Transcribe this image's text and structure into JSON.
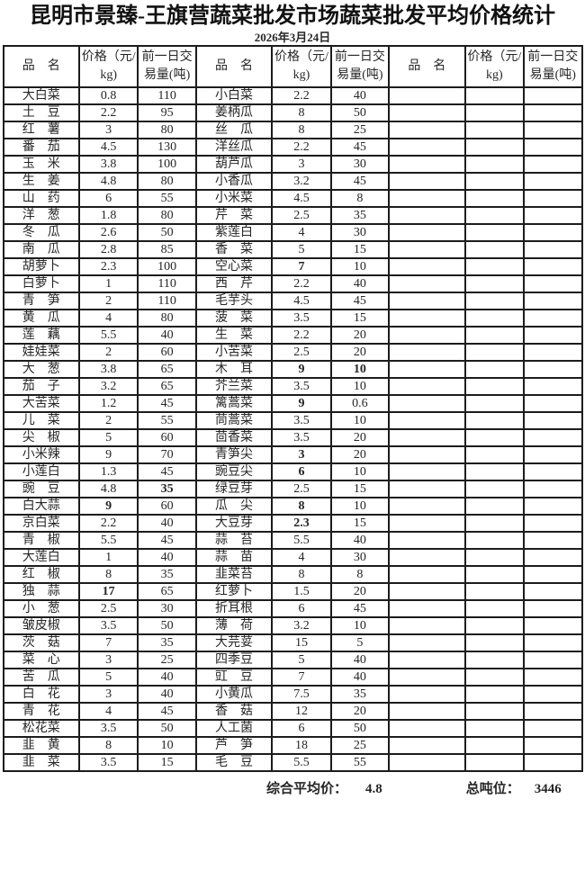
{
  "title": "昆明市景臻-王旗营蔬菜批发市场蔬菜批发平均价格统计",
  "date": "2026年3月24日",
  "columns": [
    "品　名",
    "价格（元/kg)",
    "前一日交易量(吨)"
  ],
  "groups": [
    {
      "rows": [
        {
          "n": "大白菜",
          "p": "0.8",
          "v": "110"
        },
        {
          "n": "土豆",
          "p": "2.2",
          "v": "95"
        },
        {
          "n": "红薯",
          "p": "3",
          "v": "80"
        },
        {
          "n": "番茄",
          "p": "4.5",
          "v": "130"
        },
        {
          "n": "玉米",
          "p": "3.8",
          "v": "100"
        },
        {
          "n": "生姜",
          "p": "4.8",
          "v": "80"
        },
        {
          "n": "山药",
          "p": "6",
          "v": "55"
        },
        {
          "n": "洋葱",
          "p": "1.8",
          "v": "80"
        },
        {
          "n": "冬瓜",
          "p": "2.6",
          "v": "50"
        },
        {
          "n": "南瓜",
          "p": "2.8",
          "v": "85"
        },
        {
          "n": "胡萝卜",
          "p": "2.3",
          "v": "100"
        },
        {
          "n": "白萝卜",
          "p": "1",
          "v": "110"
        },
        {
          "n": "青笋",
          "p": "2",
          "v": "110"
        },
        {
          "n": "黄瓜",
          "p": "4",
          "v": "80"
        },
        {
          "n": "莲藕",
          "p": "5.5",
          "v": "40"
        },
        {
          "n": "娃娃菜",
          "p": "2",
          "v": "60"
        },
        {
          "n": "大葱",
          "p": "3.8",
          "v": "65"
        },
        {
          "n": "茄子",
          "p": "3.2",
          "v": "65"
        },
        {
          "n": "大苦菜",
          "p": "1.2",
          "v": "45"
        },
        {
          "n": "儿菜",
          "p": "2",
          "v": "55"
        },
        {
          "n": "尖椒",
          "p": "5",
          "v": "60"
        },
        {
          "n": "小米辣",
          "p": "9",
          "v": "70"
        },
        {
          "n": "小莲白",
          "p": "1.3",
          "v": "45"
        },
        {
          "n": "豌豆",
          "p": "4.8",
          "v": "35",
          "b": [
            "v"
          ]
        },
        {
          "n": "白大蒜",
          "p": "9",
          "v": "60",
          "b": [
            "p"
          ]
        },
        {
          "n": "京白菜",
          "p": "2.2",
          "v": "40"
        },
        {
          "n": "青椒",
          "p": "5.5",
          "v": "45"
        },
        {
          "n": "大莲白",
          "p": "1",
          "v": "40"
        },
        {
          "n": "红椒",
          "p": "8",
          "v": "35"
        },
        {
          "n": "独蒜",
          "p": "17",
          "v": "65",
          "b": [
            "p"
          ]
        },
        {
          "n": "小葱",
          "p": "2.5",
          "v": "30"
        },
        {
          "n": "皱皮椒",
          "p": "3.5",
          "v": "50"
        },
        {
          "n": "茨菇",
          "p": "7",
          "v": "35"
        },
        {
          "n": "菜心",
          "p": "3",
          "v": "25"
        },
        {
          "n": "苦瓜",
          "p": "5",
          "v": "40"
        },
        {
          "n": "白花",
          "p": "3",
          "v": "40"
        },
        {
          "n": "青花",
          "p": "4",
          "v": "45"
        },
        {
          "n": "松花菜",
          "p": "3.5",
          "v": "50"
        },
        {
          "n": "韭黄",
          "p": "8",
          "v": "10"
        },
        {
          "n": "韭菜",
          "p": "3.5",
          "v": "15"
        }
      ]
    },
    {
      "rows": [
        {
          "n": "小白菜",
          "p": "2.2",
          "v": "40"
        },
        {
          "n": "姜柄瓜",
          "p": "8",
          "v": "50"
        },
        {
          "n": "丝瓜",
          "p": "8",
          "v": "25"
        },
        {
          "n": "洋丝瓜",
          "p": "2.2",
          "v": "45"
        },
        {
          "n": "葫芦瓜",
          "p": "3",
          "v": "30"
        },
        {
          "n": "小香瓜",
          "p": "3.2",
          "v": "45"
        },
        {
          "n": "小米菜",
          "p": "4.5",
          "v": "8"
        },
        {
          "n": "芹菜",
          "p": "2.5",
          "v": "35"
        },
        {
          "n": "紫莲白",
          "p": "4",
          "v": "30"
        },
        {
          "n": "香菜",
          "p": "5",
          "v": "15"
        },
        {
          "n": "空心菜",
          "p": "7",
          "v": "10",
          "b": [
            "p"
          ]
        },
        {
          "n": "西芹",
          "p": "2.2",
          "v": "40"
        },
        {
          "n": "毛芋头",
          "p": "4.5",
          "v": "45"
        },
        {
          "n": "菠菜",
          "p": "3.5",
          "v": "15"
        },
        {
          "n": "生菜",
          "p": "2.2",
          "v": "20"
        },
        {
          "n": "小苦菜",
          "p": "2.5",
          "v": "20"
        },
        {
          "n": "木耳",
          "p": "9",
          "v": "10",
          "b": [
            "p",
            "v"
          ]
        },
        {
          "n": "芥兰菜",
          "p": "3.5",
          "v": "10"
        },
        {
          "n": "篱蒿菜",
          "p": "9",
          "v": "0.6",
          "b": [
            "p"
          ]
        },
        {
          "n": "茼蒿菜",
          "p": "3.5",
          "v": "10"
        },
        {
          "n": "茴香菜",
          "p": "3.5",
          "v": "20"
        },
        {
          "n": "青笋尖",
          "p": "3",
          "v": "20",
          "b": [
            "p"
          ]
        },
        {
          "n": "豌豆尖",
          "p": "6",
          "v": "10",
          "b": [
            "p"
          ]
        },
        {
          "n": "绿豆芽",
          "p": "2.5",
          "v": "15"
        },
        {
          "n": "瓜尖",
          "p": "8",
          "v": "10",
          "b": [
            "p"
          ]
        },
        {
          "n": "大豆芽",
          "p": "2.3",
          "v": "15",
          "b": [
            "p"
          ]
        },
        {
          "n": "蒜苔",
          "p": "5.5",
          "v": "40"
        },
        {
          "n": "蒜苗",
          "p": "4",
          "v": "30"
        },
        {
          "n": "韭菜苔",
          "p": "8",
          "v": "8"
        },
        {
          "n": "红萝卜",
          "p": "1.5",
          "v": "20"
        },
        {
          "n": "折耳根",
          "p": "6",
          "v": "45"
        },
        {
          "n": "薄荷",
          "p": "3.2",
          "v": "10"
        },
        {
          "n": "大芫荽",
          "p": "15",
          "v": "5"
        },
        {
          "n": "四季豆",
          "p": "5",
          "v": "40"
        },
        {
          "n": "豇豆",
          "p": "7",
          "v": "40"
        },
        {
          "n": "小黄瓜",
          "p": "7.5",
          "v": "35"
        },
        {
          "n": "香菇",
          "p": "12",
          "v": "20"
        },
        {
          "n": "人工菌",
          "p": "6",
          "v": "50"
        },
        {
          "n": "芦笋",
          "p": "18",
          "v": "25"
        },
        {
          "n": "毛豆",
          "p": "5.5",
          "v": "55"
        }
      ]
    },
    {
      "rows": []
    }
  ],
  "footer": {
    "avg_label": "综合平均价：",
    "avg_value": "4.8",
    "tonnage_label": "总吨位：",
    "tonnage_value": "3446"
  }
}
